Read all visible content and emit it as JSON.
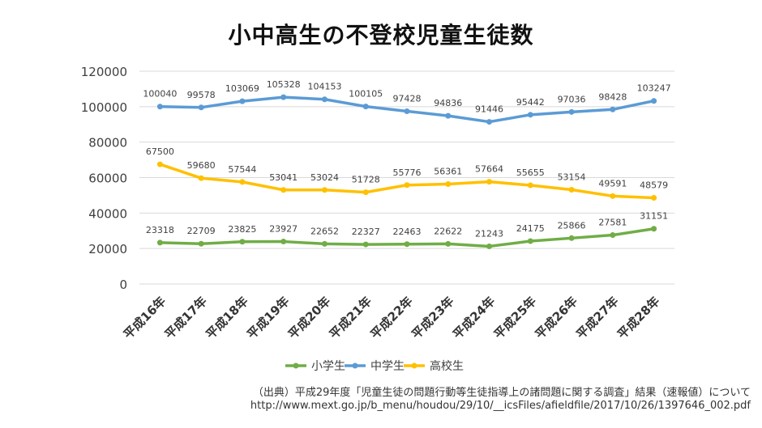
{
  "chart_data": {
    "type": "line",
    "title": "小中高生の不登校児童生徒数",
    "categories": [
      "平成16年",
      "平成17年",
      "平成18年",
      "平成19年",
      "平成20年",
      "平成21年",
      "平成22年",
      "平成23年",
      "平成24年",
      "平成25年",
      "平成26年",
      "平成27年",
      "平成28年"
    ],
    "ylim": [
      0,
      120000
    ],
    "yticks": [
      0,
      20000,
      40000,
      60000,
      80000,
      100000,
      120000
    ],
    "grid": true,
    "legend_position": "bottom",
    "series": [
      {
        "name": "小学生",
        "color": "#70ad47",
        "values": [
          23318,
          22709,
          23825,
          23927,
          22652,
          22327,
          22463,
          22622,
          21243,
          24175,
          25866,
          27581,
          31151
        ]
      },
      {
        "name": "中学生",
        "color": "#5b9bd5",
        "values": [
          100040,
          99578,
          103069,
          105328,
          104153,
          100105,
          97428,
          94836,
          91446,
          95442,
          97036,
          98428,
          103247
        ]
      },
      {
        "name": "高校生",
        "color": "#ffc000",
        "values": [
          67500,
          59680,
          57544,
          53041,
          53024,
          51728,
          55776,
          56361,
          57664,
          55655,
          53154,
          49591,
          48579
        ]
      }
    ]
  },
  "source": {
    "line1": "（出典）平成29年度「児童生徒の問題行動等生徒指導上の諸問題に関する調査」結果（速報値）について",
    "line2": "http://www.mext.go.jp/b_menu/houdou/29/10/__icsFiles/afieldfile/2017/10/26/1397646_002.pdf"
  }
}
